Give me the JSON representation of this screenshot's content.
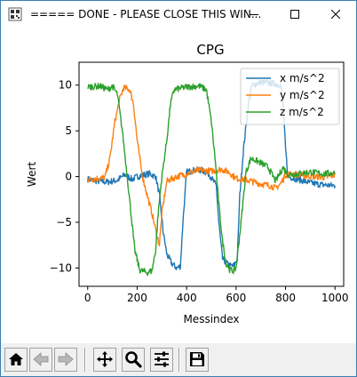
{
  "window": {
    "title": "===== DONE - PLEASE CLOSE THIS WIN...",
    "controls": [
      "minimize",
      "maximize",
      "close"
    ]
  },
  "toolbar": {
    "buttons": [
      {
        "name": "home-button",
        "icon": "home-icon"
      },
      {
        "name": "back-button",
        "icon": "arrow-left-icon"
      },
      {
        "name": "forward-button",
        "icon": "arrow-right-icon"
      },
      {
        "name": "pan-button",
        "icon": "move-icon"
      },
      {
        "name": "zoom-button",
        "icon": "magnifier-icon"
      },
      {
        "name": "subplots-button",
        "icon": "sliders-icon"
      },
      {
        "name": "save-button",
        "icon": "floppy-disk-icon"
      }
    ]
  },
  "chart_data": {
    "type": "line",
    "title": "CPG",
    "xlabel": "Messindex",
    "ylabel": "Wert",
    "xlim": [
      -35,
      1035
    ],
    "ylim": [
      -12,
      12.5
    ],
    "xticks": [
      0,
      200,
      400,
      600,
      800,
      1000
    ],
    "yticks": [
      -10,
      -5,
      0,
      5,
      10
    ],
    "grid": false,
    "legend_position": "top-right",
    "series": [
      {
        "name": "x m/s^2",
        "color": "#1f77b4",
        "points": [
          [
            0,
            -0.3
          ],
          [
            40,
            -0.5
          ],
          [
            80,
            -0.6
          ],
          [
            120,
            -0.4
          ],
          [
            150,
            0.2
          ],
          [
            180,
            -0.3
          ],
          [
            200,
            0.0
          ],
          [
            230,
            0.2
          ],
          [
            250,
            0.3
          ],
          [
            275,
            0.0
          ],
          [
            290,
            -2.0
          ],
          [
            305,
            -6.0
          ],
          [
            320,
            -8.5
          ],
          [
            340,
            -9.5
          ],
          [
            360,
            -10.0
          ],
          [
            375,
            -9.8
          ],
          [
            385,
            -5.0
          ],
          [
            400,
            0.5
          ],
          [
            430,
            0.7
          ],
          [
            460,
            0.7
          ],
          [
            490,
            0.3
          ],
          [
            520,
            -1.0
          ],
          [
            530,
            -5.0
          ],
          [
            545,
            -9.0
          ],
          [
            570,
            -9.7
          ],
          [
            590,
            -9.8
          ],
          [
            605,
            -9.0
          ],
          [
            615,
            -2.0
          ],
          [
            630,
            3.0
          ],
          [
            650,
            8.0
          ],
          [
            665,
            10.0
          ],
          [
            700,
            10.3
          ],
          [
            750,
            10.2
          ],
          [
            780,
            10.0
          ],
          [
            790,
            8.0
          ],
          [
            800,
            3.0
          ],
          [
            810,
            0.0
          ],
          [
            850,
            -0.3
          ],
          [
            900,
            -0.7
          ],
          [
            950,
            -0.9
          ],
          [
            1000,
            -1.0
          ]
        ]
      },
      {
        "name": "y m/s^2",
        "color": "#ff7f0e",
        "points": [
          [
            0,
            -0.3
          ],
          [
            40,
            -0.2
          ],
          [
            70,
            -0.1
          ],
          [
            90,
            2.0
          ],
          [
            110,
            6.0
          ],
          [
            130,
            8.5
          ],
          [
            145,
            9.7
          ],
          [
            170,
            9.5
          ],
          [
            185,
            8.0
          ],
          [
            200,
            4.0
          ],
          [
            220,
            0.2
          ],
          [
            240,
            -2.0
          ],
          [
            260,
            -4.0
          ],
          [
            280,
            -6.5
          ],
          [
            290,
            -7.5
          ],
          [
            300,
            -4.0
          ],
          [
            320,
            -0.5
          ],
          [
            360,
            0.0
          ],
          [
            400,
            0.3
          ],
          [
            450,
            0.7
          ],
          [
            500,
            0.6
          ],
          [
            540,
            0.8
          ],
          [
            570,
            0.5
          ],
          [
            600,
            -0.2
          ],
          [
            630,
            -0.3
          ],
          [
            660,
            -0.5
          ],
          [
            700,
            -0.8
          ],
          [
            740,
            -1.0
          ],
          [
            760,
            -1.3
          ],
          [
            780,
            -0.8
          ],
          [
            800,
            0.2
          ],
          [
            830,
            0.3
          ],
          [
            870,
            0.1
          ],
          [
            920,
            0.0
          ],
          [
            960,
            -0.1
          ],
          [
            1000,
            0.2
          ]
        ]
      },
      {
        "name": "z m/s^2",
        "color": "#2ca02c",
        "points": [
          [
            0,
            9.8
          ],
          [
            50,
            9.9
          ],
          [
            80,
            9.5
          ],
          [
            100,
            9.9
          ],
          [
            120,
            9.0
          ],
          [
            140,
            5.0
          ],
          [
            160,
            0.0
          ],
          [
            175,
            -4.0
          ],
          [
            190,
            -8.0
          ],
          [
            210,
            -10.2
          ],
          [
            240,
            -10.5
          ],
          [
            260,
            -10.3
          ],
          [
            275,
            -8.0
          ],
          [
            285,
            -4.0
          ],
          [
            300,
            0.0
          ],
          [
            320,
            4.0
          ],
          [
            335,
            8.0
          ],
          [
            350,
            9.5
          ],
          [
            400,
            9.8
          ],
          [
            450,
            9.9
          ],
          [
            480,
            9.5
          ],
          [
            500,
            6.0
          ],
          [
            515,
            2.0
          ],
          [
            530,
            -3.0
          ],
          [
            545,
            -7.0
          ],
          [
            560,
            -9.5
          ],
          [
            575,
            -10.2
          ],
          [
            590,
            -10.3
          ],
          [
            600,
            -10.0
          ],
          [
            620,
            -5.0
          ],
          [
            640,
            0.5
          ],
          [
            660,
            2.0
          ],
          [
            700,
            1.5
          ],
          [
            730,
            1.0
          ],
          [
            760,
            -0.5
          ],
          [
            790,
            1.0
          ],
          [
            810,
            0.2
          ],
          [
            850,
            0.3
          ],
          [
            900,
            0.5
          ],
          [
            950,
            0.3
          ],
          [
            1000,
            0.4
          ]
        ]
      }
    ]
  }
}
